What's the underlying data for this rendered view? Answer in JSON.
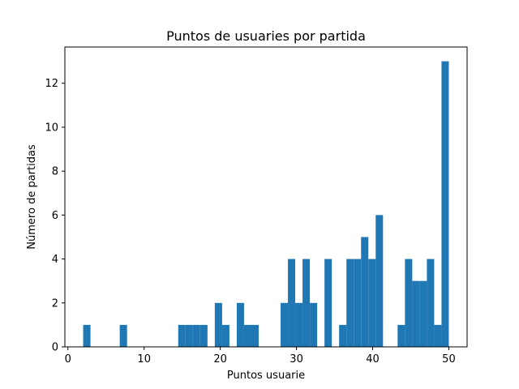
{
  "chart_data": {
    "type": "bar",
    "title": "Puntos de usuaries por partida",
    "xlabel": "Puntos usuarie",
    "ylabel": "Número de partidas",
    "xlim": [
      -0.4,
      52.4
    ],
    "ylim": [
      0,
      13.65
    ],
    "bin_width": 0.96,
    "xticks": [
      0,
      10,
      20,
      30,
      40,
      50
    ],
    "yticks": [
      0,
      2,
      4,
      6,
      8,
      10,
      12
    ],
    "grid": false,
    "legend": "none",
    "color": "#1f77b4",
    "bins": [
      {
        "x0": 2.0,
        "count": 1
      },
      {
        "x0": 6.8,
        "count": 1
      },
      {
        "x0": 14.48,
        "count": 1
      },
      {
        "x0": 15.44,
        "count": 1
      },
      {
        "x0": 16.4,
        "count": 1
      },
      {
        "x0": 17.36,
        "count": 1
      },
      {
        "x0": 19.28,
        "count": 2
      },
      {
        "x0": 20.24,
        "count": 1
      },
      {
        "x0": 22.16,
        "count": 2
      },
      {
        "x0": 23.12,
        "count": 1
      },
      {
        "x0": 24.08,
        "count": 1
      },
      {
        "x0": 27.92,
        "count": 2
      },
      {
        "x0": 28.88,
        "count": 4
      },
      {
        "x0": 29.84,
        "count": 2
      },
      {
        "x0": 30.8,
        "count": 4
      },
      {
        "x0": 31.76,
        "count": 2
      },
      {
        "x0": 33.68,
        "count": 4
      },
      {
        "x0": 35.6,
        "count": 1
      },
      {
        "x0": 36.56,
        "count": 4
      },
      {
        "x0": 37.52,
        "count": 4
      },
      {
        "x0": 38.48,
        "count": 5
      },
      {
        "x0": 39.44,
        "count": 4
      },
      {
        "x0": 40.4,
        "count": 6
      },
      {
        "x0": 43.28,
        "count": 1
      },
      {
        "x0": 44.24,
        "count": 4
      },
      {
        "x0": 45.2,
        "count": 3
      },
      {
        "x0": 46.16,
        "count": 3
      },
      {
        "x0": 47.12,
        "count": 4
      },
      {
        "x0": 48.08,
        "count": 1
      },
      {
        "x0": 49.04,
        "count": 13
      }
    ]
  }
}
